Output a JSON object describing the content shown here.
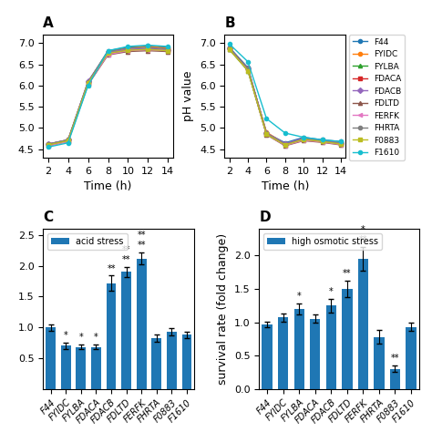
{
  "chart_data": [
    {
      "type": "line",
      "title": "A",
      "x_label": "Time (h)",
      "x": [
        2,
        4,
        6,
        8,
        10,
        12,
        14
      ],
      "xlim": [
        1.5,
        14.5
      ],
      "xticks": [
        2,
        4,
        6,
        8,
        10,
        12,
        14
      ],
      "ylim": [
        4.3,
        7.2
      ],
      "yticks": [
        4.5,
        5.0,
        5.5,
        6.0,
        6.5,
        7.0
      ],
      "series": [
        {
          "name": "F44",
          "marker": "circle",
          "values": [
            4.62,
            4.72,
            6.08,
            6.82,
            6.9,
            6.93,
            6.9
          ]
        },
        {
          "name": "FYIDC",
          "marker": "circle",
          "values": [
            4.62,
            4.72,
            6.08,
            6.8,
            6.88,
            6.92,
            6.88
          ]
        },
        {
          "name": "FYLBA",
          "marker": "triangle_up",
          "values": [
            4.6,
            4.7,
            6.05,
            6.75,
            6.82,
            6.85,
            6.82
          ]
        },
        {
          "name": "FDACA",
          "marker": "square",
          "values": [
            4.6,
            4.7,
            6.06,
            6.77,
            6.84,
            6.87,
            6.84
          ]
        },
        {
          "name": "FDACB",
          "marker": "diamond",
          "values": [
            4.62,
            4.72,
            6.1,
            6.78,
            6.85,
            6.87,
            6.84
          ]
        },
        {
          "name": "FDLTD",
          "marker": "triangle_up",
          "values": [
            4.58,
            4.68,
            6.02,
            6.72,
            6.8,
            6.82,
            6.8
          ]
        },
        {
          "name": "FERFK",
          "marker": "triangle_left",
          "values": [
            4.58,
            4.68,
            6.04,
            6.73,
            6.82,
            6.84,
            6.82
          ]
        },
        {
          "name": "FHRTA",
          "marker": "circle",
          "values": [
            4.62,
            4.72,
            6.08,
            6.8,
            6.88,
            6.9,
            6.86
          ]
        },
        {
          "name": "F0883",
          "marker": "square",
          "values": [
            4.6,
            4.7,
            6.06,
            6.76,
            6.83,
            6.85,
            6.82
          ]
        },
        {
          "name": "F1610",
          "marker": "circle",
          "values": [
            4.55,
            4.65,
            6.0,
            6.82,
            6.92,
            6.95,
            6.92
          ]
        }
      ]
    },
    {
      "type": "line",
      "title": "B",
      "x_label": "Time (h)",
      "y_label": "pH value",
      "x": [
        2,
        4,
        6,
        8,
        10,
        12,
        14
      ],
      "xlim": [
        1.5,
        14.5
      ],
      "xticks": [
        2,
        4,
        6,
        8,
        10,
        12,
        14
      ],
      "ylim": [
        4.3,
        7.2
      ],
      "yticks": [
        4.5,
        5.0,
        5.5,
        6.0,
        6.5,
        7.0
      ],
      "legend": "upper left",
      "series": [
        {
          "name": "F44",
          "marker": "circle",
          "values": [
            6.9,
            6.42,
            4.88,
            4.65,
            4.78,
            4.72,
            4.68
          ]
        },
        {
          "name": "FYIDC",
          "marker": "circle",
          "values": [
            6.87,
            6.38,
            4.9,
            4.62,
            4.75,
            4.7,
            4.65
          ]
        },
        {
          "name": "FYLBA",
          "marker": "triangle_up",
          "values": [
            6.85,
            6.35,
            4.85,
            4.6,
            4.72,
            4.68,
            4.62
          ]
        },
        {
          "name": "FDACA",
          "marker": "square",
          "values": [
            6.88,
            6.4,
            4.86,
            4.62,
            4.75,
            4.7,
            4.63
          ]
        },
        {
          "name": "FDACB",
          "marker": "diamond",
          "values": [
            6.88,
            6.4,
            4.88,
            4.63,
            4.76,
            4.71,
            4.64
          ]
        },
        {
          "name": "FDLTD",
          "marker": "triangle_up",
          "values": [
            6.86,
            6.36,
            4.84,
            4.58,
            4.7,
            4.66,
            4.6
          ]
        },
        {
          "name": "FERFK",
          "marker": "triangle_left",
          "values": [
            6.87,
            6.37,
            4.85,
            4.59,
            4.71,
            4.67,
            4.61
          ]
        },
        {
          "name": "FHRTA",
          "marker": "circle",
          "values": [
            6.88,
            6.4,
            4.87,
            4.61,
            4.74,
            4.69,
            4.63
          ]
        },
        {
          "name": "F0883",
          "marker": "square",
          "values": [
            6.85,
            6.35,
            4.85,
            4.6,
            4.73,
            4.68,
            4.62
          ]
        },
        {
          "name": "F1610",
          "marker": "circle",
          "values": [
            6.98,
            6.56,
            5.22,
            4.88,
            4.78,
            4.72,
            4.68
          ]
        }
      ]
    },
    {
      "type": "bar",
      "title": "C",
      "categories": [
        "F44",
        "FYIDC",
        "FYLBA",
        "FDACA",
        "FDACB",
        "FDLTD",
        "FERFK",
        "FHRTA",
        "F0883",
        "F1610"
      ],
      "ylim": [
        0,
        2.6
      ],
      "yticks": [
        0.5,
        1.0,
        1.5,
        2.0,
        2.5
      ],
      "legend": "upper left",
      "series": [
        {
          "name": "acid stress",
          "values": [
            1.0,
            0.7,
            0.68,
            0.68,
            1.72,
            1.9,
            2.12,
            0.82,
            0.93,
            0.88
          ],
          "errors": [
            0.05,
            0.05,
            0.04,
            0.04,
            0.12,
            0.08,
            0.1,
            0.06,
            0.06,
            0.05
          ]
        }
      ],
      "annotations": [
        {
          "category": "FYIDC",
          "texts": [
            "*"
          ]
        },
        {
          "category": "FYLBA",
          "texts": [
            "*"
          ]
        },
        {
          "category": "FDACA",
          "texts": [
            "*"
          ]
        },
        {
          "category": "FDACB",
          "texts": [
            "**"
          ]
        },
        {
          "category": "FDLTD",
          "texts": [
            "**",
            "**"
          ]
        },
        {
          "category": "FERFK",
          "texts": [
            "**",
            "**"
          ]
        }
      ]
    },
    {
      "type": "bar",
      "title": "D",
      "y_label": "survival rate (fold change)",
      "categories": [
        "F44",
        "FYIDC",
        "FYLBA",
        "FDACA",
        "FDACB",
        "FDLTD",
        "FERFK",
        "FHRTA",
        "F0883",
        "F1610"
      ],
      "ylim": [
        0,
        2.4
      ],
      "yticks": [
        0.0,
        0.5,
        1.0,
        1.5,
        2.0
      ],
      "legend": "upper left",
      "series": [
        {
          "name": "high osmotic stress",
          "values": [
            0.97,
            1.07,
            1.2,
            1.05,
            1.25,
            1.5,
            1.95,
            0.78,
            0.3,
            0.93
          ],
          "errors": [
            0.04,
            0.06,
            0.08,
            0.06,
            0.1,
            0.12,
            0.18,
            0.1,
            0.05,
            0.06
          ]
        }
      ],
      "annotations": [
        {
          "category": "FYLBA",
          "texts": [
            "*"
          ]
        },
        {
          "category": "FDACB",
          "texts": [
            "*"
          ]
        },
        {
          "category": "FDLTD",
          "texts": [
            "**"
          ]
        },
        {
          "category": "FERFK",
          "texts": [
            "**",
            "*"
          ]
        },
        {
          "category": "F0883",
          "texts": [
            "**"
          ]
        }
      ]
    }
  ]
}
